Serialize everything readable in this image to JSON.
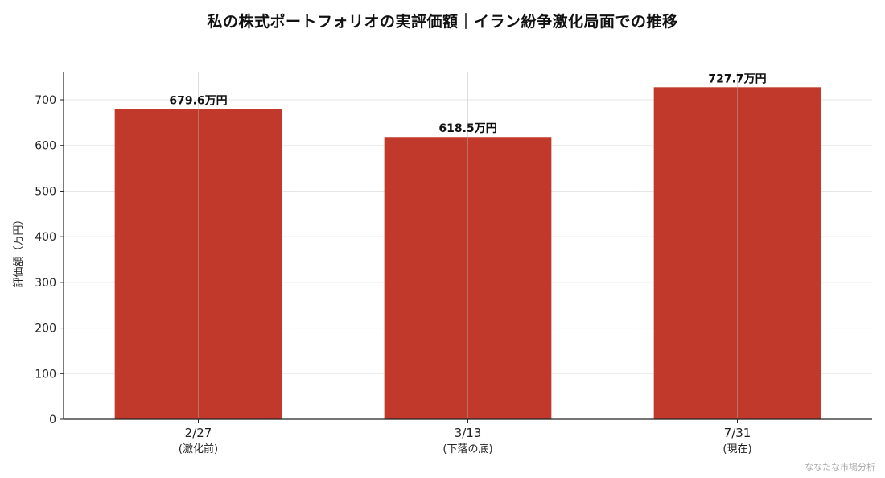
{
  "chart_data": {
    "type": "bar",
    "title": "私の株式ポートフォリオの実評価額｜イラン紛争激化局面での推移",
    "ylabel": "評価額（万円）",
    "xlabel": "",
    "categories": [
      "2/27",
      "3/13",
      "7/31"
    ],
    "category_sublabels": [
      "(激化前)",
      "(下落の底)",
      "(現在)"
    ],
    "values": [
      679.6,
      618.5,
      727.7
    ],
    "value_labels": [
      "679.6万円",
      "618.5万円",
      "727.7万円"
    ],
    "ylim": [
      0,
      760
    ],
    "yticks": [
      0,
      100,
      200,
      300,
      400,
      500,
      600,
      700
    ],
    "grid": true,
    "bar_color": "#c0392b"
  },
  "watermark": "ななたな市場分析"
}
